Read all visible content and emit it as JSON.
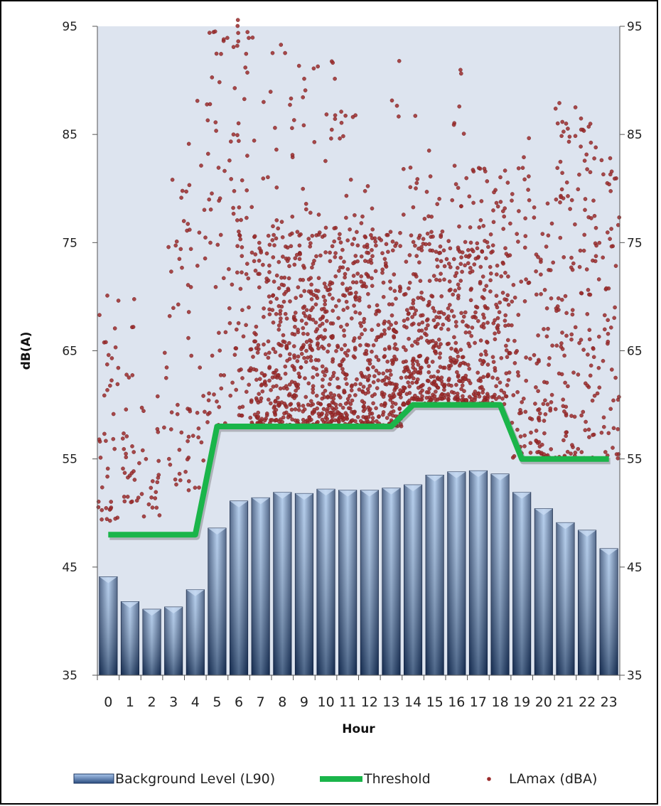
{
  "chart_data": {
    "type": "bar",
    "xlabel": "Hour",
    "ylabel": "dB(A)",
    "ylim": [
      35,
      95
    ],
    "yticks": [
      35,
      45,
      55,
      65,
      75,
      85,
      95
    ],
    "categories": [
      "0",
      "1",
      "2",
      "3",
      "4",
      "5",
      "6",
      "7",
      "8",
      "9",
      "10",
      "11",
      "12",
      "13",
      "14",
      "15",
      "16",
      "17",
      "18",
      "19",
      "20",
      "21",
      "22",
      "23"
    ],
    "series": [
      {
        "name": "Background Level (L90)",
        "type": "bar",
        "color": "#4f73a6",
        "values": [
          44.1,
          41.8,
          41.1,
          41.3,
          42.9,
          48.6,
          51.1,
          51.4,
          51.9,
          51.8,
          52.2,
          52.1,
          52.1,
          52.3,
          52.6,
          53.5,
          53.8,
          53.9,
          53.6,
          51.9,
          50.4,
          49.1,
          48.4,
          46.7
        ]
      },
      {
        "name": "Threshold",
        "type": "line",
        "color": "#1ab54a",
        "values": [
          48,
          48,
          48,
          48,
          48,
          58,
          58,
          58,
          58,
          58,
          58,
          58,
          58,
          58,
          60,
          60,
          60,
          60,
          60,
          55,
          55,
          55,
          55,
          55
        ]
      },
      {
        "name": "LAmax (dBA)",
        "type": "scatter",
        "color": "#9b2b2b",
        "distribution": [
          {
            "hour": 0,
            "count": 40,
            "min": 49,
            "max": 71
          },
          {
            "hour": 1,
            "count": 30,
            "min": 51,
            "max": 70
          },
          {
            "hour": 2,
            "count": 22,
            "min": 49,
            "max": 62
          },
          {
            "hour": 3,
            "count": 30,
            "min": 52,
            "max": 81
          },
          {
            "hour": 4,
            "count": 40,
            "min": 52,
            "max": 91
          },
          {
            "hour": 5,
            "count": 45,
            "min": 58,
            "max": 96
          },
          {
            "hour": 6,
            "count": 70,
            "min": 59,
            "max": 96
          },
          {
            "hour": 7,
            "count": 110,
            "min": 58,
            "max": 94
          },
          {
            "hour": 8,
            "count": 150,
            "min": 58,
            "max": 94
          },
          {
            "hour": 9,
            "count": 160,
            "min": 58,
            "max": 93
          },
          {
            "hour": 10,
            "count": 160,
            "min": 58,
            "max": 93
          },
          {
            "hour": 11,
            "count": 150,
            "min": 58,
            "max": 88
          },
          {
            "hour": 12,
            "count": 140,
            "min": 58,
            "max": 84
          },
          {
            "hour": 13,
            "count": 140,
            "min": 58,
            "max": 94
          },
          {
            "hour": 14,
            "count": 140,
            "min": 60,
            "max": 87
          },
          {
            "hour": 15,
            "count": 140,
            "min": 60,
            "max": 85
          },
          {
            "hour": 16,
            "count": 140,
            "min": 60,
            "max": 91
          },
          {
            "hour": 17,
            "count": 130,
            "min": 60,
            "max": 82
          },
          {
            "hour": 18,
            "count": 90,
            "min": 60,
            "max": 82
          },
          {
            "hour": 19,
            "count": 60,
            "min": 55,
            "max": 86
          },
          {
            "hour": 20,
            "count": 70,
            "min": 55,
            "max": 79
          },
          {
            "hour": 21,
            "count": 80,
            "min": 55,
            "max": 89
          },
          {
            "hour": 22,
            "count": 70,
            "min": 55,
            "max": 88
          },
          {
            "hour": 23,
            "count": 55,
            "min": 55,
            "max": 83
          }
        ]
      }
    ],
    "legend": {
      "placement": "bottom",
      "items": [
        "Background Level (L90)",
        "Threshold",
        "LAmax (dBA)"
      ]
    },
    "grid": false,
    "plot_background": "#dde4ef"
  }
}
